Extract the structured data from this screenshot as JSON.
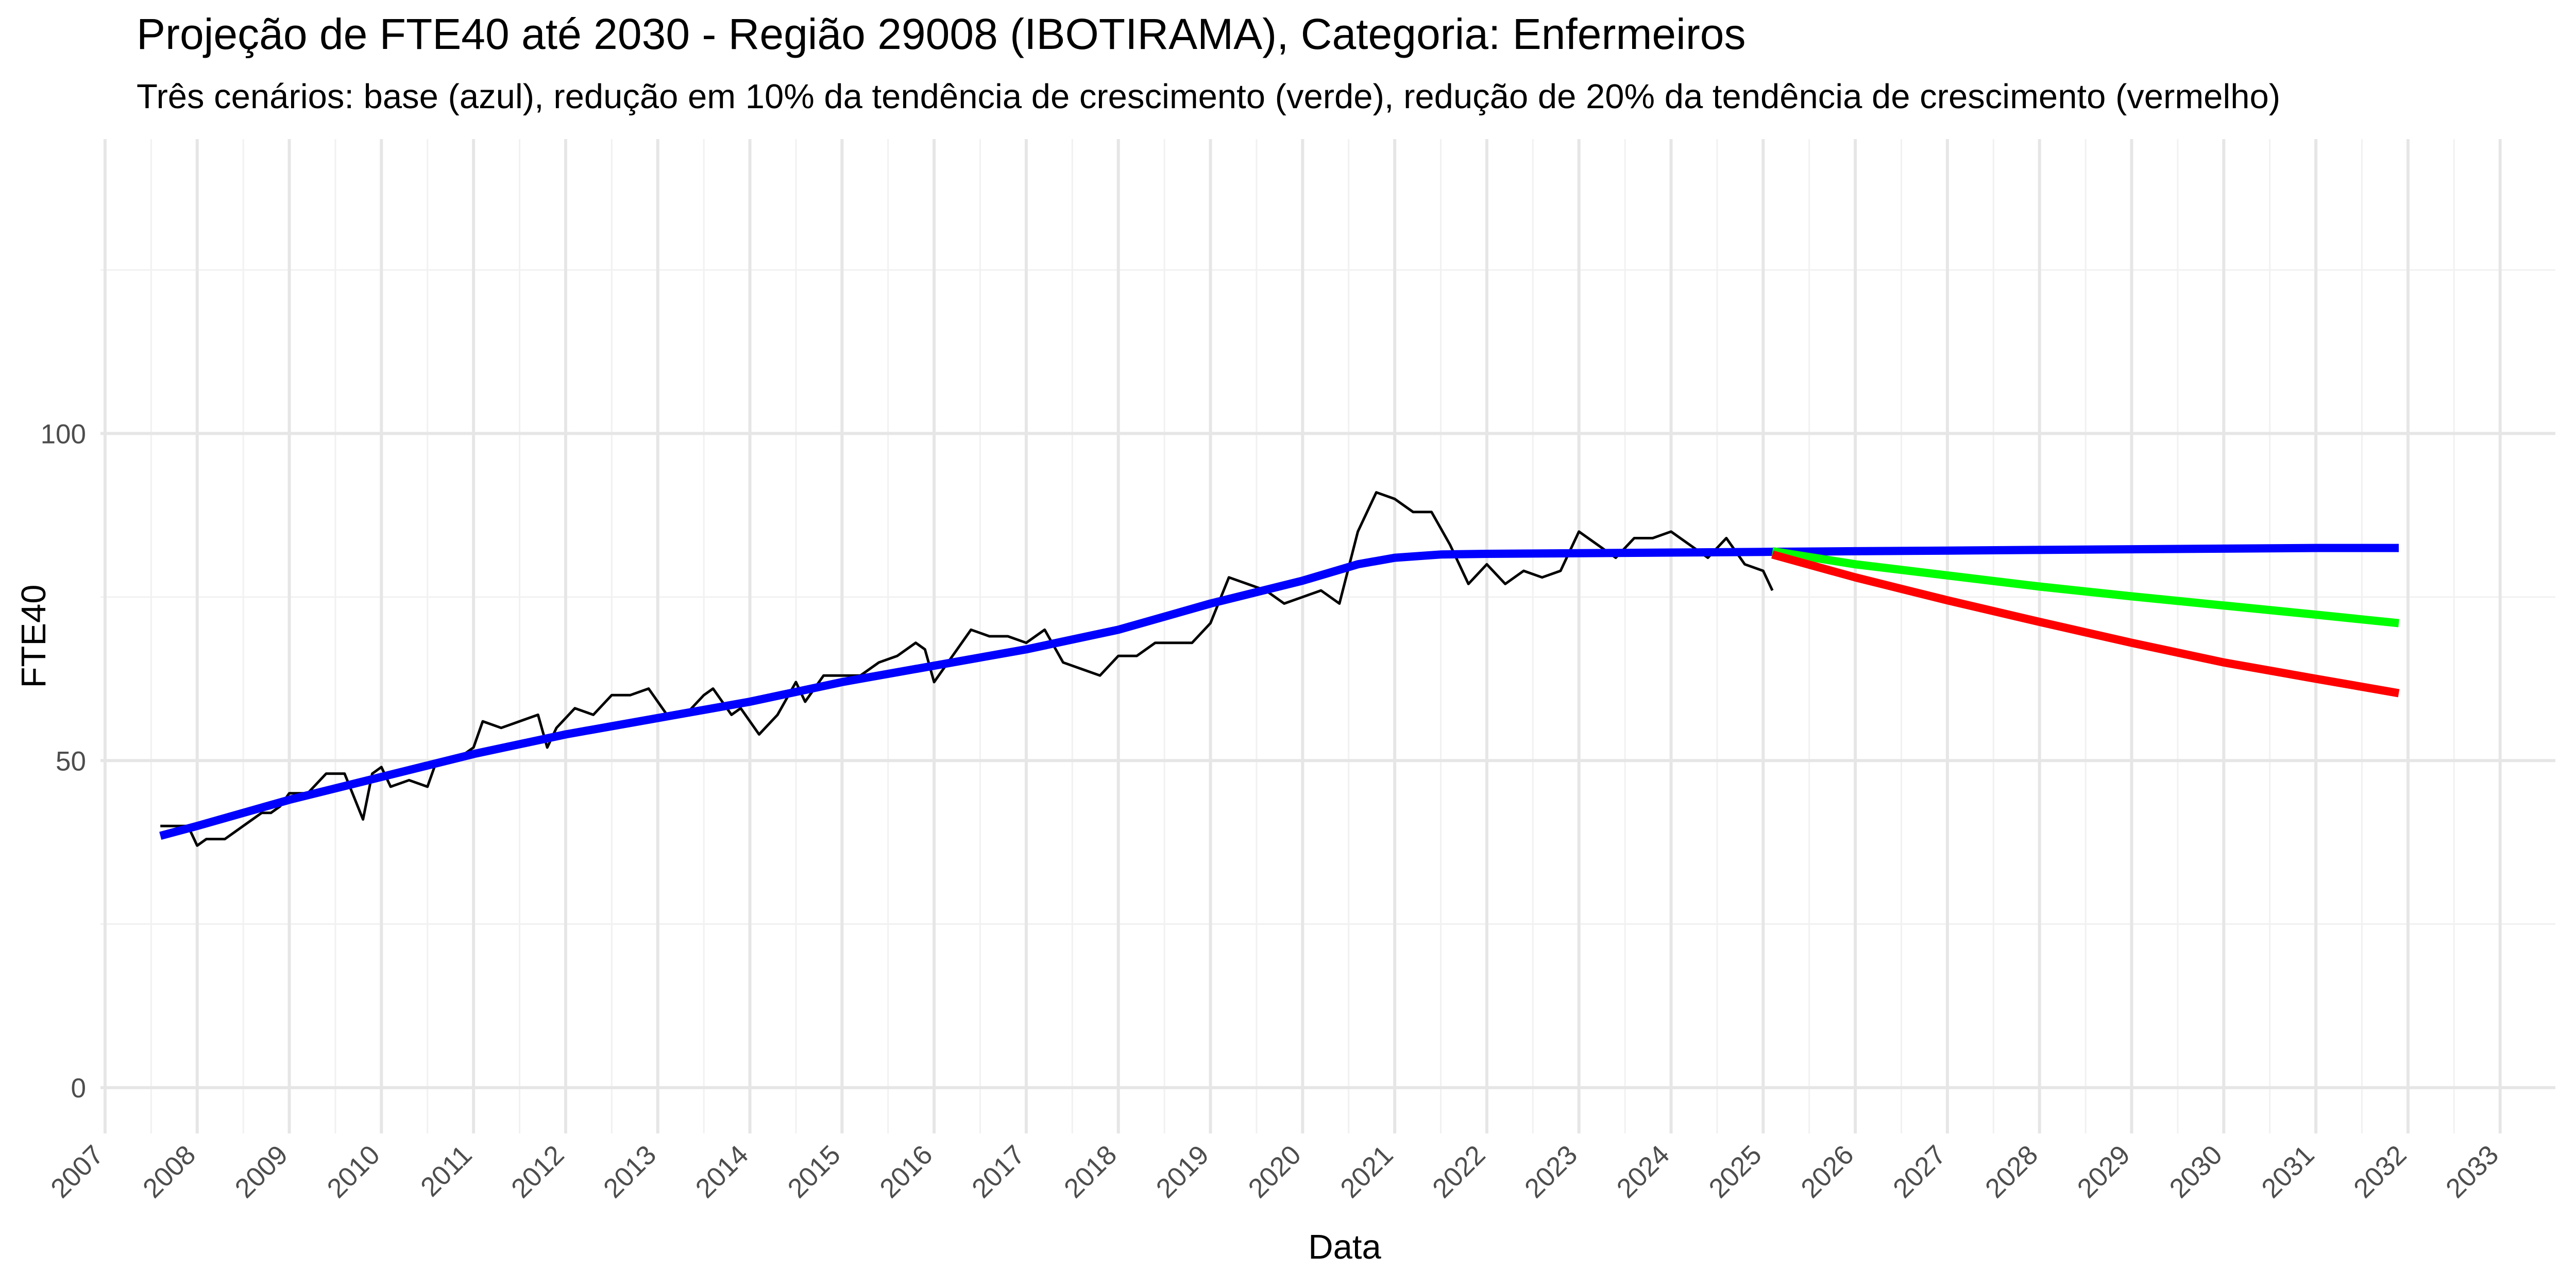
{
  "chart_data": {
    "type": "line",
    "title": "Projeção de FTE40 até 2030 - Região 29008 (IBOTIRAMA), Categoria: Enfermeiros",
    "subtitle": "Três cenários: base (azul), redução em 10% da tendência de crescimento (verde), redução de 20% da tendência de crescimento (vermelho)",
    "xlabel": "Data",
    "ylabel": "FTE40",
    "xlim": [
      2006.95,
      2033.6
    ],
    "ylim": [
      -7,
      145
    ],
    "x_ticks": [
      2007,
      2008,
      2009,
      2010,
      2011,
      2012,
      2013,
      2014,
      2015,
      2016,
      2017,
      2018,
      2019,
      2020,
      2021,
      2022,
      2023,
      2024,
      2025,
      2026,
      2027,
      2028,
      2029,
      2030,
      2031,
      2032,
      2033
    ],
    "y_ticks": [
      0,
      50,
      100
    ],
    "grid": true,
    "legend": "none",
    "series": [
      {
        "color": "#000000",
        "x": [
          2007.6,
          2007.9,
          2008.0,
          2008.1,
          2008.3,
          2008.5,
          2008.7,
          2008.8,
          2008.9,
          2009.0,
          2009.2,
          2009.4,
          2009.5,
          2009.6,
          2009.8,
          2009.9,
          2010.0,
          2010.1,
          2010.3,
          2010.5,
          2010.6,
          2010.8,
          2011.0,
          2011.1,
          2011.3,
          2011.5,
          2011.7,
          2011.8,
          2011.9,
          2012.1,
          2012.3,
          2012.5,
          2012.7,
          2012.9,
          2013.1,
          2013.3,
          2013.5,
          2013.6,
          2013.8,
          2013.9,
          2014.1,
          2014.3,
          2014.5,
          2014.6,
          2014.8,
          2015.0,
          2015.2,
          2015.4,
          2015.6,
          2015.8,
          2015.9,
          2016.0,
          2016.2,
          2016.4,
          2016.6,
          2016.8,
          2017.0,
          2017.2,
          2017.4,
          2017.6,
          2017.8,
          2018.0,
          2018.2,
          2018.4,
          2018.6,
          2018.8,
          2019.0,
          2019.2,
          2019.4,
          2019.6,
          2019.8,
          2020.0,
          2020.2,
          2020.4,
          2020.6,
          2020.8,
          2021.0,
          2021.2,
          2021.4,
          2021.6,
          2021.8,
          2022.0,
          2022.2,
          2022.4,
          2022.6,
          2022.8,
          2023.0,
          2023.2,
          2023.4,
          2023.6,
          2023.8,
          2024.0,
          2024.2,
          2024.4,
          2024.6,
          2024.8,
          2025.0,
          2025.1
        ],
        "y": [
          40,
          40,
          37,
          38,
          38,
          40,
          42,
          42,
          43,
          45,
          45,
          48,
          48,
          48,
          41,
          48,
          49,
          46,
          47,
          46,
          50,
          50,
          52,
          56,
          55,
          56,
          57,
          52,
          55,
          58,
          57,
          60,
          60,
          61,
          57,
          57,
          60,
          61,
          57,
          58,
          54,
          57,
          62,
          59,
          63,
          63,
          63,
          65,
          66,
          68,
          67,
          62,
          66,
          70,
          69,
          69,
          68,
          70,
          65,
          64,
          63,
          66,
          66,
          68,
          68,
          68,
          71,
          78,
          77,
          76,
          74,
          75,
          76,
          74,
          85,
          91,
          90,
          88,
          88,
          83,
          77,
          80,
          77,
          79,
          78,
          79,
          85,
          83,
          81,
          84,
          84,
          85,
          83,
          81,
          84,
          80,
          79,
          76
        ]
      },
      {
        "color": "#0000ff",
        "x": [
          2007.6,
          2008.0,
          2009.0,
          2010.0,
          2011.0,
          2012.0,
          2013.0,
          2014.0,
          2015.0,
          2016.0,
          2017.0,
          2018.0,
          2019.0,
          2020.0,
          2020.6,
          2021.0,
          2021.5,
          2022.0,
          2023.0,
          2024.0,
          2025.0,
          2026.0,
          2027.0,
          2028.0,
          2029.0,
          2030.0,
          2031.0,
          2031.9
        ],
        "y": [
          38.5,
          40,
          44,
          47.5,
          51,
          54,
          56.5,
          59,
          62,
          64.5,
          67,
          70,
          74,
          77.5,
          80,
          81,
          81.5,
          81.6,
          81.7,
          81.8,
          81.9,
          82.0,
          82.1,
          82.2,
          82.3,
          82.4,
          82.5,
          82.5
        ]
      },
      {
        "color": "#00ff00",
        "x": [
          2025.1,
          2026.0,
          2027.0,
          2028.0,
          2029.0,
          2030.0,
          2031.0,
          2031.9
        ],
        "y": [
          82,
          80,
          78.3,
          76.6,
          75.1,
          73.7,
          72.3,
          71
        ]
      },
      {
        "color": "#ff0000",
        "x": [
          2025.1,
          2026.0,
          2027.0,
          2028.0,
          2029.0,
          2030.0,
          2031.0,
          2031.9
        ],
        "y": [
          81.5,
          78,
          74.5,
          71.2,
          68,
          65,
          62.5,
          60.3
        ]
      }
    ]
  }
}
